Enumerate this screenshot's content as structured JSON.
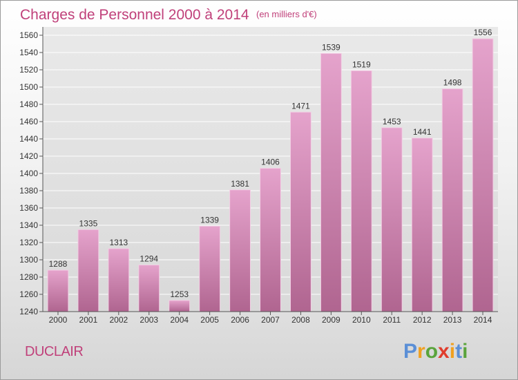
{
  "chart_data": {
    "type": "bar",
    "title": "Charges de Personnel 2000 à 2014",
    "subtitle": "(en milliers d'€)",
    "categories": [
      "2000",
      "2001",
      "2002",
      "2003",
      "2004",
      "2005",
      "2006",
      "2007",
      "2008",
      "2009",
      "2010",
      "2011",
      "2012",
      "2013",
      "2014"
    ],
    "values": [
      1288,
      1335,
      1313,
      1294,
      1253,
      1339,
      1381,
      1406,
      1471,
      1539,
      1519,
      1453,
      1441,
      1498,
      1556
    ],
    "ylim": [
      1240,
      1560
    ],
    "yticks": [
      1240,
      1260,
      1280,
      1300,
      1320,
      1340,
      1360,
      1380,
      1400,
      1420,
      1440,
      1460,
      1480,
      1500,
      1520,
      1540,
      1560
    ],
    "grid": true,
    "xlabel": "",
    "ylabel": "",
    "bar_color_top": "#e5a3cc",
    "bar_color_bottom": "#b06590"
  },
  "footer": {
    "place_name": "DUCLAIR",
    "logo_letters": [
      "P",
      "r",
      "o",
      "x",
      "i",
      "t",
      "i"
    ],
    "logo_colors": [
      "#5b8fd6",
      "#f0a020",
      "#5aa43c",
      "#e03c2c",
      "#f0a020",
      "#5b8fd6",
      "#5aa43c"
    ]
  }
}
